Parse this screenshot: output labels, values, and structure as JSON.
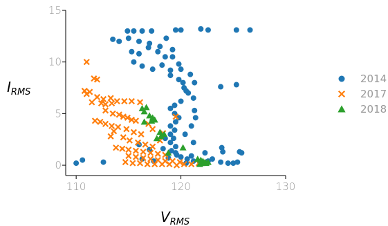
{
  "chart_data": {
    "type": "scatter",
    "xlabel": "V",
    "xlabel_sub": "RMS",
    "ylabel": "I",
    "ylabel_sub": "RMS",
    "xlim": [
      109,
      130
    ],
    "ylim": [
      -1,
      15
    ],
    "x_ticks": [
      110,
      120,
      130
    ],
    "y_ticks": [
      0,
      5,
      10,
      15
    ],
    "grid": false,
    "legend_position": "right",
    "series": [
      {
        "name": "2014",
        "marker": "circle",
        "color": "#1f77b4",
        "points": [
          [
            110.0,
            0.2
          ],
          [
            110.6,
            0.5
          ],
          [
            112.6,
            0.3
          ],
          [
            113.5,
            12.2
          ],
          [
            114.1,
            12.0
          ],
          [
            115.0,
            12.3
          ],
          [
            116.0,
            12.0
          ],
          [
            117.0,
            11.8
          ],
          [
            118.0,
            11.5
          ],
          [
            118.6,
            12.3
          ],
          [
            119.2,
            11.2
          ],
          [
            114.9,
            13.0
          ],
          [
            115.5,
            13.0
          ],
          [
            116.3,
            13.0
          ],
          [
            117.2,
            13.0
          ],
          [
            119.5,
            13.1
          ],
          [
            120.0,
            13.1
          ],
          [
            121.9,
            13.2
          ],
          [
            122.6,
            13.1
          ],
          [
            126.6,
            13.1
          ],
          [
            125.3,
            13.1
          ],
          [
            115.3,
            11.0
          ],
          [
            116.0,
            10.8
          ],
          [
            116.9,
            11.4
          ],
          [
            117.8,
            11.0
          ],
          [
            118.5,
            10.5
          ],
          [
            119.2,
            10.5
          ],
          [
            119.8,
            9.8
          ],
          [
            115.5,
            10.0
          ],
          [
            116.3,
            9.6
          ],
          [
            117.3,
            9.3
          ],
          [
            118.2,
            9.7
          ],
          [
            119.0,
            9.2
          ],
          [
            120.0,
            9.3
          ],
          [
            119.0,
            8.7
          ],
          [
            119.8,
            8.3
          ],
          [
            120.2,
            8.0
          ],
          [
            120.3,
            7.5
          ],
          [
            120.7,
            7.0
          ],
          [
            121.2,
            6.5
          ],
          [
            120.0,
            6.2
          ],
          [
            119.4,
            5.8
          ],
          [
            119.0,
            5.5
          ],
          [
            119.4,
            5.0
          ],
          [
            119.8,
            4.6
          ],
          [
            119.5,
            4.2
          ],
          [
            119.0,
            3.8
          ],
          [
            119.4,
            3.4
          ],
          [
            119.0,
            3.0
          ],
          [
            119.3,
            2.6
          ],
          [
            119.0,
            2.2
          ],
          [
            119.5,
            1.8
          ],
          [
            119.1,
            1.4
          ],
          [
            119.6,
            1.0
          ],
          [
            120.0,
            0.8
          ],
          [
            120.6,
            0.6
          ],
          [
            121.2,
            0.4
          ],
          [
            121.8,
            0.3
          ],
          [
            116.0,
            2.0
          ],
          [
            117.0,
            1.5
          ],
          [
            118.3,
            1.6
          ],
          [
            119.5,
            1.2
          ],
          [
            118.5,
            2.6
          ],
          [
            118.8,
            0.7
          ],
          [
            117.4,
            0.4
          ],
          [
            116.3,
            0.6
          ],
          [
            120.5,
            0.2
          ],
          [
            121.0,
            0.9
          ],
          [
            122.6,
            0.4
          ],
          [
            123.0,
            0.6
          ],
          [
            124.0,
            1.3
          ],
          [
            123.8,
            0.3
          ],
          [
            124.5,
            0.2
          ],
          [
            125.0,
            0.2
          ],
          [
            125.6,
            1.3
          ],
          [
            125.8,
            1.2
          ],
          [
            125.4,
            0.3
          ],
          [
            123.9,
            1.7
          ],
          [
            122.3,
            1.2
          ],
          [
            121.2,
            2.2
          ],
          [
            120.4,
            3.0
          ],
          [
            121.4,
            4.6
          ],
          [
            121.3,
            5.3
          ],
          [
            121.0,
            3.8
          ],
          [
            123.8,
            7.6
          ],
          [
            125.3,
            7.8
          ],
          [
            120.9,
            8.8
          ],
          [
            121.3,
            8.0
          ],
          [
            120.5,
            7.2
          ]
        ]
      },
      {
        "name": "2017",
        "marker": "x",
        "color": "#ff7f0e",
        "points": [
          [
            111.0,
            10.0
          ],
          [
            111.7,
            8.4
          ],
          [
            112.0,
            8.3
          ],
          [
            110.8,
            7.2
          ],
          [
            111.3,
            7.1
          ],
          [
            111.0,
            6.9
          ],
          [
            112.0,
            6.6
          ],
          [
            112.6,
            6.4
          ],
          [
            113.3,
            6.5
          ],
          [
            111.5,
            6.1
          ],
          [
            112.4,
            6.0
          ],
          [
            112.8,
            5.9
          ],
          [
            113.4,
            6.0
          ],
          [
            113.9,
            6.2
          ],
          [
            114.6,
            6.2
          ],
          [
            115.3,
            6.2
          ],
          [
            116.1,
            6.1
          ],
          [
            112.8,
            5.3
          ],
          [
            113.5,
            5.0
          ],
          [
            114.1,
            4.9
          ],
          [
            114.5,
            4.7
          ],
          [
            114.9,
            4.6
          ],
          [
            115.3,
            4.4
          ],
          [
            115.7,
            4.3
          ],
          [
            111.8,
            4.3
          ],
          [
            112.3,
            4.2
          ],
          [
            112.8,
            4.0
          ],
          [
            113.4,
            3.8
          ],
          [
            114.0,
            3.7
          ],
          [
            114.8,
            3.5
          ],
          [
            115.5,
            3.2
          ],
          [
            116.2,
            3.0
          ],
          [
            113.6,
            3.3
          ],
          [
            113.3,
            2.8
          ],
          [
            114.5,
            2.7
          ],
          [
            115.1,
            2.4
          ],
          [
            115.9,
            2.2
          ],
          [
            116.6,
            2.0
          ],
          [
            117.3,
            1.8
          ],
          [
            113.8,
            1.7
          ],
          [
            114.4,
            1.6
          ],
          [
            115.0,
            1.5
          ],
          [
            115.7,
            1.4
          ],
          [
            116.4,
            1.3
          ],
          [
            117.1,
            1.2
          ],
          [
            117.8,
            1.1
          ],
          [
            118.5,
            1.0
          ],
          [
            115.0,
            0.9
          ],
          [
            115.7,
            0.8
          ],
          [
            116.4,
            0.7
          ],
          [
            117.1,
            0.6
          ],
          [
            117.8,
            0.5
          ],
          [
            118.5,
            0.4
          ],
          [
            119.2,
            0.4
          ],
          [
            119.9,
            0.3
          ],
          [
            114.7,
            0.3
          ],
          [
            115.4,
            0.2
          ],
          [
            116.1,
            0.2
          ],
          [
            116.8,
            0.1
          ],
          [
            117.5,
            0.1
          ],
          [
            118.2,
            0.1
          ],
          [
            118.9,
            0.1
          ],
          [
            119.6,
            0.0
          ],
          [
            120.3,
            0.1
          ],
          [
            121.0,
            0.1
          ],
          [
            121.7,
            0.2
          ],
          [
            119.5,
            4.7
          ],
          [
            118.3,
            3.1
          ],
          [
            118.0,
            2.4
          ],
          [
            116.9,
            4.0
          ],
          [
            117.3,
            3.5
          ]
        ]
      },
      {
        "name": "2018",
        "marker": "triangle",
        "color": "#2ca02c",
        "points": [
          [
            116.3,
            5.5
          ],
          [
            116.7,
            5.6
          ],
          [
            116.5,
            5.2
          ],
          [
            117.0,
            4.8
          ],
          [
            117.3,
            4.6
          ],
          [
            117.5,
            4.4
          ],
          [
            116.5,
            4.2
          ],
          [
            117.2,
            4.3
          ],
          [
            118.0,
            3.2
          ],
          [
            118.4,
            3.0
          ],
          [
            117.7,
            2.6
          ],
          [
            118.1,
            2.8
          ],
          [
            121.6,
            0.6
          ],
          [
            121.9,
            0.5
          ],
          [
            122.1,
            0.4
          ],
          [
            122.3,
            0.3
          ],
          [
            122.0,
            0.2
          ],
          [
            122.6,
            0.3
          ],
          [
            121.8,
            0.1
          ],
          [
            122.4,
            0.2
          ],
          [
            120.2,
            1.7
          ],
          [
            118.8,
            1.2
          ]
        ]
      }
    ]
  }
}
